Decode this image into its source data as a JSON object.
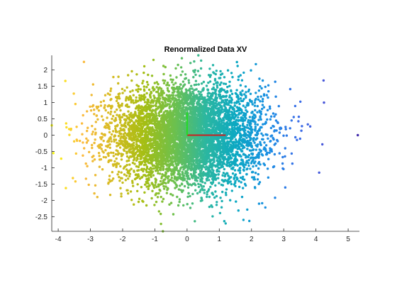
{
  "chart_data": {
    "type": "scatter",
    "title": "Renormalized Data XV",
    "xlabel": "",
    "ylabel": "",
    "xlim": [
      -4.2,
      5.35
    ],
    "ylim": [
      -2.95,
      2.45
    ],
    "xticks": [
      -4,
      -3,
      -2,
      -1,
      0,
      1,
      2,
      3,
      4,
      5
    ],
    "yticks": [
      -2.5,
      -2,
      -1.5,
      -1,
      -0.5,
      0,
      0.5,
      1,
      1.5,
      2
    ],
    "grid": false,
    "legend": "none",
    "colormap": "parula",
    "color_by": "x",
    "colormap_stops": [
      "#f9fb0e",
      "#fcba3d",
      "#d5bb21",
      "#a5be14",
      "#6cc04e",
      "#2cb7a0",
      "#0ba8c3",
      "#1a8fe3",
      "#3a6ee8",
      "#4a52d6",
      "#3e26a8"
    ],
    "point_count": 6000,
    "distribution": {
      "x_mean": 0.0,
      "x_std": 1.17,
      "y_mean": 0.0,
      "y_std": 0.77
    },
    "outliers": [
      {
        "x": 5.3,
        "y": 0.0
      },
      {
        "x": 4.25,
        "y": 1.0
      },
      {
        "x": 4.2,
        "y": -0.28
      },
      {
        "x": 4.1,
        "y": -1.15
      },
      {
        "x": -4.2,
        "y": 0.3
      },
      {
        "x": -4.15,
        "y": -0.55
      },
      {
        "x": -3.2,
        "y": 2.25
      },
      {
        "x": 0.35,
        "y": 2.45
      },
      {
        "x": 1.75,
        "y": -2.6
      },
      {
        "x": -0.75,
        "y": -2.95
      }
    ],
    "principal_axes": [
      {
        "color": "#cc1f1f",
        "from": [
          0,
          0
        ],
        "to": [
          1.2,
          0
        ]
      },
      {
        "color": "#22dd22",
        "from": [
          0,
          0
        ],
        "to": [
          0,
          0.7
        ]
      }
    ]
  }
}
